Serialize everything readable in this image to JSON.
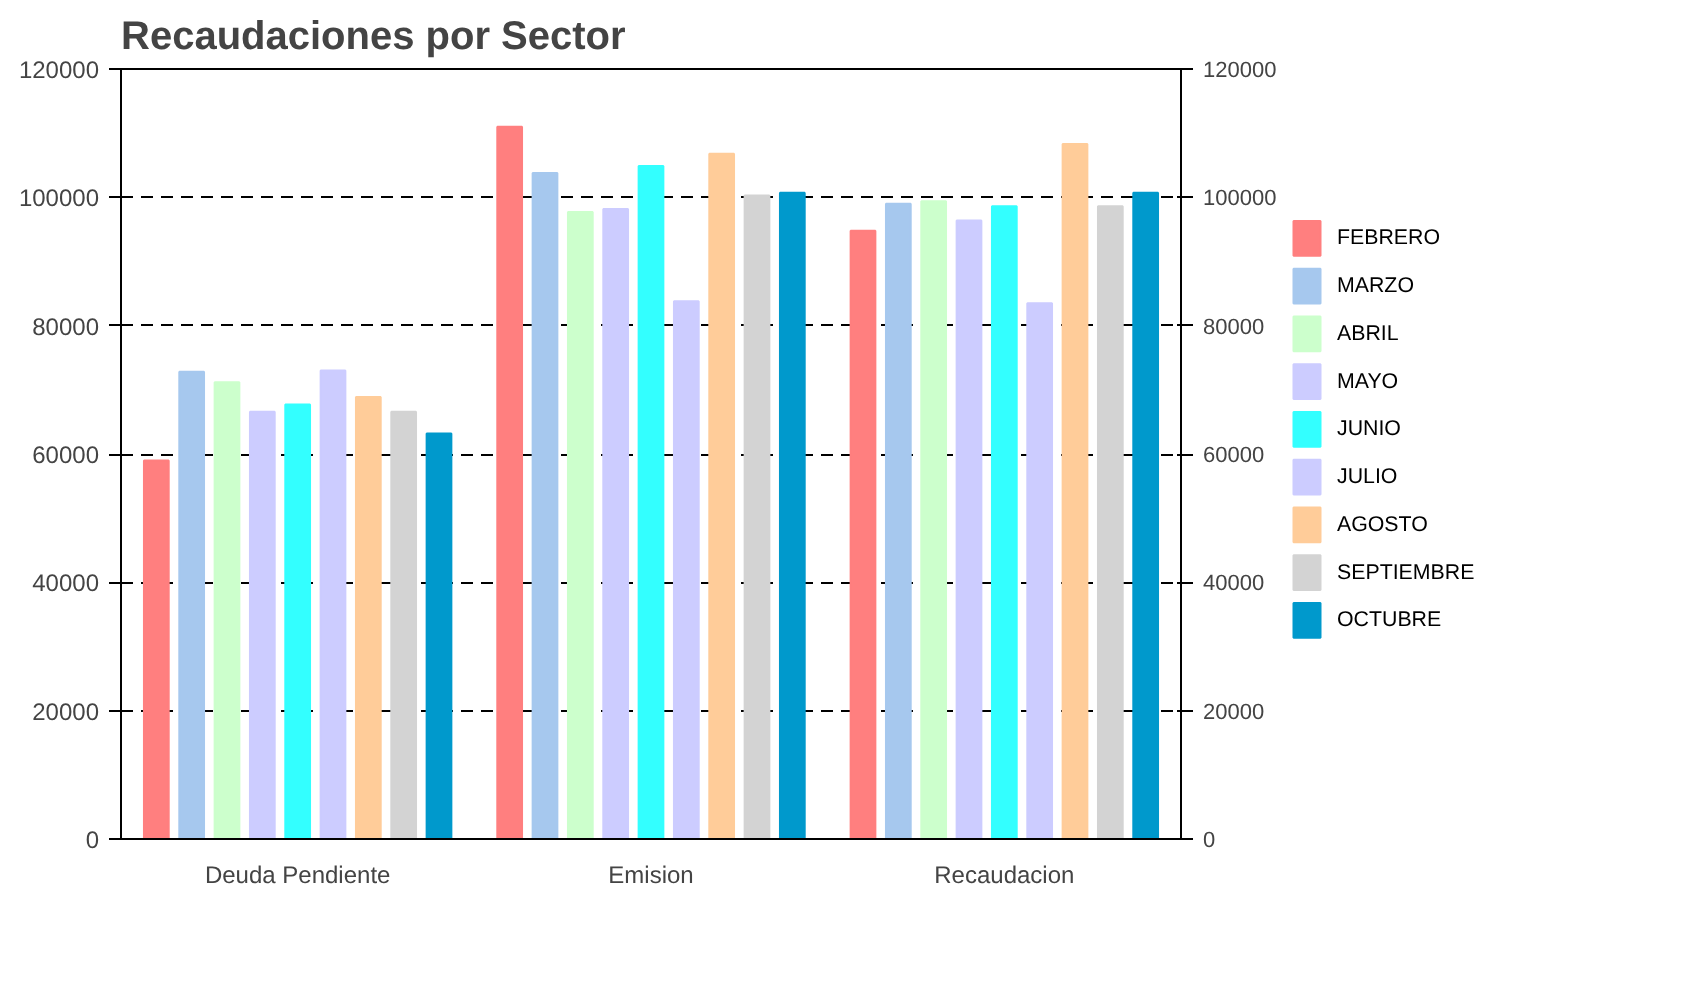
{
  "chart_data": {
    "type": "bar",
    "title": "Recaudaciones por Sector",
    "categories": [
      "Deuda Pendiente",
      "Emision",
      "Recaudacion"
    ],
    "series": [
      {
        "name": "FEBRERO",
        "color": "#ff7f7f",
        "values": [
          59000,
          111000,
          94800
        ]
      },
      {
        "name": "MARZO",
        "color": "#a6c8ee",
        "values": [
          72800,
          103800,
          99000
        ]
      },
      {
        "name": "ABRIL",
        "color": "#ccffcc",
        "values": [
          71200,
          97700,
          99400
        ]
      },
      {
        "name": "MAYO",
        "color": "#ccccff",
        "values": [
          66600,
          98200,
          96400
        ]
      },
      {
        "name": "JUNIO",
        "color": "#33ffff",
        "values": [
          67700,
          104900,
          98600
        ]
      },
      {
        "name": "JULIO",
        "color": "#ccccff",
        "values": [
          73000,
          83800,
          83500
        ]
      },
      {
        "name": "AGOSTO",
        "color": "#ffcc99",
        "values": [
          68900,
          106800,
          108300
        ]
      },
      {
        "name": "SEPTIEMBRE",
        "color": "#d3d3d3",
        "values": [
          66600,
          100300,
          98600
        ]
      },
      {
        "name": "OCTUBRE",
        "color": "#0099cc",
        "values": [
          63200,
          100700,
          100700
        ]
      }
    ],
    "ylim": [
      0,
      120000
    ],
    "yticks": [
      0,
      20000,
      40000,
      60000,
      80000,
      100000,
      120000
    ],
    "y2lim": [
      0,
      120000
    ],
    "y2ticks": [
      0,
      20000,
      40000,
      60000,
      80000,
      100000,
      120000
    ],
    "grid": "y",
    "legend": "right"
  }
}
